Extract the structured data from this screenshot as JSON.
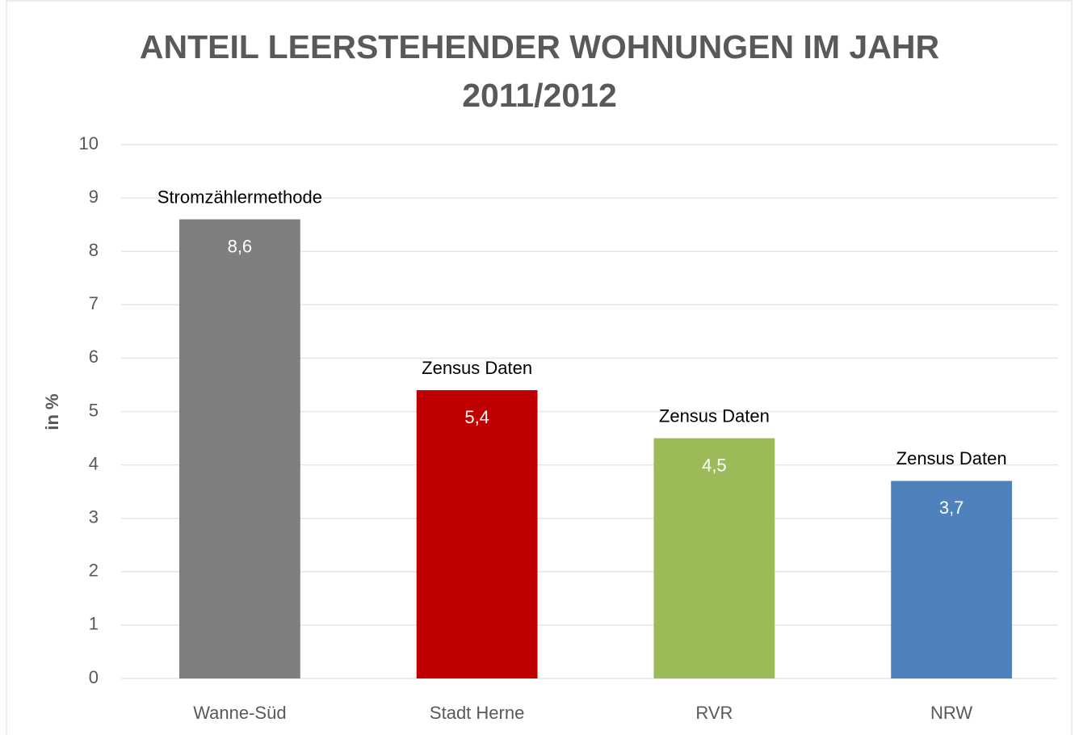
{
  "chart_data": {
    "type": "bar",
    "title": "ANTEIL LEERSTEHENDER WOHNUNGEN IM JAHR 2011/2012",
    "y_label": "in %",
    "categories": [
      "Wanne-Süd",
      "Stadt Herne",
      "RVR",
      "NRW"
    ],
    "values": [
      8.6,
      5.4,
      4.5,
      3.7
    ],
    "value_labels": [
      "8,6",
      "5,4",
      "4,5",
      "3,7"
    ],
    "annotations": [
      "Stromzählermethode",
      "Zensus Daten",
      "Zensus Daten",
      "Zensus Daten"
    ],
    "colors": [
      "#7f7f7f",
      "#c00000",
      "#9bbb59",
      "#4f81bd"
    ],
    "ylim": [
      0,
      10
    ],
    "yticks": [
      0,
      1,
      2,
      3,
      4,
      5,
      6,
      7,
      8,
      9,
      10
    ],
    "grid": true
  }
}
